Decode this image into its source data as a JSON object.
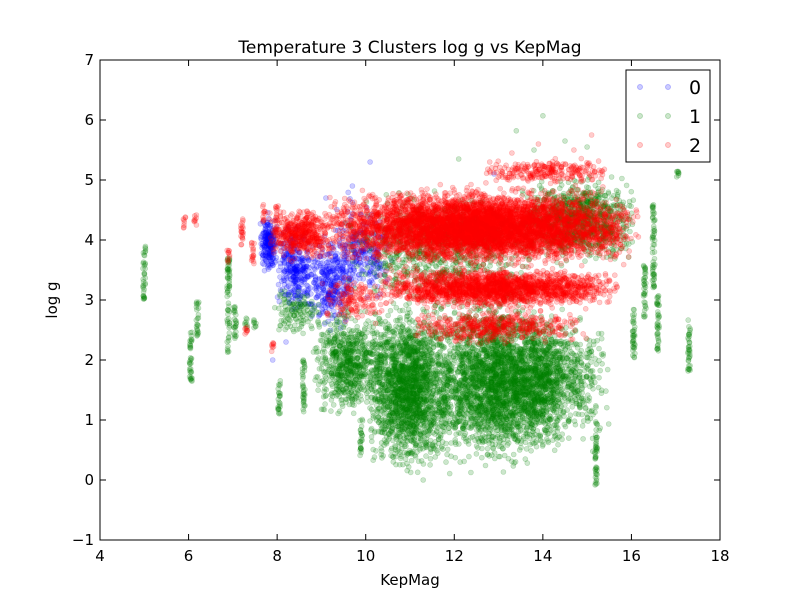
{
  "chart_data": {
    "type": "scatter",
    "title": "Temperature 3 Clusters log g vs KepMag",
    "xlabel": "KepMag",
    "ylabel": "log g",
    "xlim": [
      4,
      18
    ],
    "ylim": [
      -1,
      7
    ],
    "xticks": [
      "4",
      "6",
      "8",
      "10",
      "12",
      "14",
      "16",
      "18"
    ],
    "yticks": [
      "−1",
      "0",
      "1",
      "2",
      "3",
      "4",
      "5",
      "6",
      "7"
    ],
    "grid": false,
    "legend_position": "top-right",
    "series": [
      {
        "name": "0",
        "color": "#0000ff",
        "marker": "circle",
        "alpha": 0.2,
        "regions": [
          {
            "x": [
              7.6,
              8.0
            ],
            "y": [
              3.4,
              4.5
            ],
            "n": 220
          },
          {
            "x": [
              8.0,
              8.8
            ],
            "y": [
              2.6,
              4.4
            ],
            "n": 300
          },
          {
            "x": [
              8.6,
              9.8
            ],
            "y": [
              2.4,
              4.2
            ],
            "n": 320
          },
          {
            "x": [
              9.2,
              10.6
            ],
            "y": [
              2.8,
              4.9
            ],
            "n": 260
          }
        ],
        "outliers": [
          [
            10.1,
            5.3
          ],
          [
            9.1,
            4.7
          ],
          [
            9.7,
            4.9
          ],
          [
            7.9,
            2.0
          ],
          [
            8.2,
            2.3
          ],
          [
            12.9,
            5.1
          ]
        ]
      },
      {
        "name": "1",
        "color": "#008000",
        "marker": "circle",
        "alpha": 0.2,
        "regions": [
          {
            "x": [
              8.8,
              10.5
            ],
            "y": [
              0.9,
              3.0
            ],
            "n": 700
          },
          {
            "x": [
              10.0,
              12.0
            ],
            "y": [
              -0.1,
              3.2
            ],
            "n": 2000
          },
          {
            "x": [
              11.5,
              14.5
            ],
            "y": [
              0.0,
              3.3
            ],
            "n": 2600
          },
          {
            "x": [
              13.0,
              15.5
            ],
            "y": [
              0.3,
              3.0
            ],
            "n": 900
          },
          {
            "x": [
              13.5,
              16.1
            ],
            "y": [
              3.5,
              5.2
            ],
            "n": 900
          },
          {
            "x": [
              9.5,
              14.0
            ],
            "y": [
              2.8,
              4.9
            ],
            "n": 700
          },
          {
            "x": [
              7.9,
              9.0
            ],
            "y": [
              2.3,
              3.3
            ],
            "n": 120
          }
        ],
        "strips": [
          {
            "x": 5.0,
            "y": [
              3.0,
              3.9
            ]
          },
          {
            "x": 6.05,
            "y": [
              1.6,
              2.5
            ]
          },
          {
            "x": 6.2,
            "y": [
              2.4,
              3.0
            ]
          },
          {
            "x": 6.9,
            "y": [
              2.1,
              3.7
            ]
          },
          {
            "x": 7.05,
            "y": [
              2.3,
              2.9
            ]
          },
          {
            "x": 7.3,
            "y": [
              2.5,
              2.7
            ]
          },
          {
            "x": 7.5,
            "y": [
              2.5,
              2.7
            ]
          },
          {
            "x": 8.05,
            "y": [
              1.1,
              1.7
            ]
          },
          {
            "x": 8.6,
            "y": [
              1.1,
              2.0
            ]
          },
          {
            "x": 9.9,
            "y": [
              0.4,
              1.0
            ]
          },
          {
            "x": 16.5,
            "y": [
              3.2,
              4.6
            ]
          },
          {
            "x": 16.3,
            "y": [
              2.7,
              3.6
            ]
          },
          {
            "x": 16.6,
            "y": [
              2.1,
              3.1
            ]
          },
          {
            "x": 16.05,
            "y": [
              2.0,
              2.9
            ]
          },
          {
            "x": 17.3,
            "y": [
              1.8,
              2.7
            ]
          },
          {
            "x": 15.2,
            "y": [
              -0.1,
              1.0
            ]
          },
          {
            "x": 17.05,
            "y": [
              5.05,
              5.15
            ]
          }
        ],
        "outliers": [
          [
            14.0,
            6.07
          ],
          [
            13.4,
            5.82
          ],
          [
            14.5,
            5.65
          ],
          [
            15.0,
            5.55
          ],
          [
            12.1,
            5.35
          ],
          [
            13.8,
            5.5
          ]
        ]
      },
      {
        "name": "2",
        "color": "#ff0000",
        "marker": "circle",
        "alpha": 0.2,
        "regions": [
          {
            "x": [
              9.0,
              16.2
            ],
            "y": [
              3.5,
              4.95
            ],
            "n": 6000
          },
          {
            "x": [
              10.2,
              15.8
            ],
            "y": [
              2.8,
              3.6
            ],
            "n": 2000
          },
          {
            "x": [
              11.0,
              15.0
            ],
            "y": [
              2.2,
              2.9
            ],
            "n": 500
          },
          {
            "x": [
              7.8,
              9.3
            ],
            "y": [
              3.6,
              4.6
            ],
            "n": 500
          },
          {
            "x": [
              12.5,
              15.5
            ],
            "y": [
              4.9,
              5.4
            ],
            "n": 250
          },
          {
            "x": [
              9.0,
              10.5
            ],
            "y": [
              2.5,
              3.5
            ],
            "n": 150
          }
        ],
        "strips": [
          {
            "x": 5.9,
            "y": [
              4.2,
              4.4
            ]
          },
          {
            "x": 6.15,
            "y": [
              4.25,
              4.45
            ]
          },
          {
            "x": 6.9,
            "y": [
              3.6,
              3.85
            ]
          },
          {
            "x": 7.2,
            "y": [
              3.9,
              4.4
            ]
          },
          {
            "x": 7.45,
            "y": [
              3.6,
              4.0
            ]
          },
          {
            "x": 7.7,
            "y": [
              4.3,
              4.6
            ]
          },
          {
            "x": 8.0,
            "y": [
              4.3,
              4.6
            ]
          },
          {
            "x": 8.7,
            "y": [
              4.3,
              4.5
            ]
          },
          {
            "x": 7.3,
            "y": [
              2.4,
              2.6
            ]
          },
          {
            "x": 7.9,
            "y": [
              2.1,
              2.3
            ]
          }
        ],
        "outliers": [
          [
            13.3,
            5.45
          ],
          [
            15.1,
            5.75
          ],
          [
            13.9,
            5.6
          ],
          [
            12.8,
            5.3
          ],
          [
            14.7,
            5.5
          ]
        ]
      }
    ]
  }
}
